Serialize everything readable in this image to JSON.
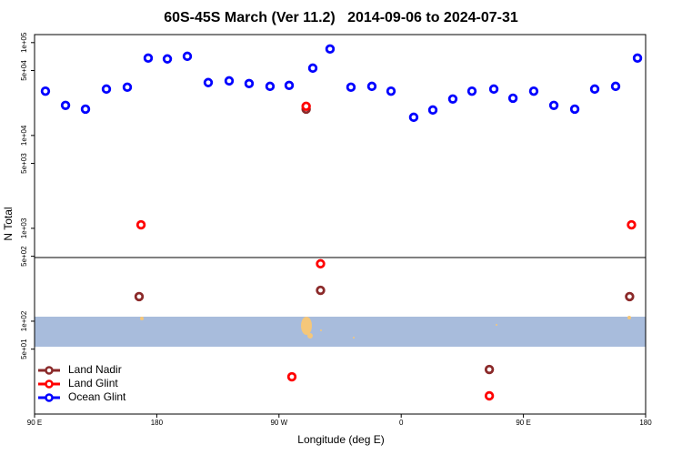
{
  "chart_data": {
    "type": "scatter",
    "title": "60S-45S March (Ver 11.2)   2014-09-06 to 2024-07-31",
    "x_label": "Longitude (deg E)",
    "y_label": "N Total",
    "log_y": true,
    "grid": false,
    "legend": "lower left",
    "xlim": [
      90,
      540
    ],
    "ylim": [
      10,
      122000
    ],
    "xticks": [
      {
        "value": 90,
        "label": "90 E"
      },
      180,
      {
        "value": 270,
        "label": "90 W"
      },
      {
        "value": 360,
        "label": "0"
      },
      {
        "value": 450,
        "label": "90 E"
      },
      {
        "value": 540,
        "label": "180"
      }
    ],
    "yticks": [
      {
        "value": 100000,
        "label": "1e+05"
      },
      {
        "value": 50000,
        "label": "5e+04"
      },
      {
        "value": 10000,
        "label": "1e+04"
      },
      {
        "value": 5000,
        "label": "5e+03"
      },
      {
        "value": 1000,
        "label": "1e+03"
      },
      {
        "value": 500,
        "label": "5e+02"
      },
      {
        "value": 100,
        "label": "1e+02"
      },
      {
        "value": 50,
        "label": "5e+01"
      }
    ],
    "series": [
      {
        "name": "Land Nadir",
        "color": "#8b2a2a",
        "x": [
          167,
          290,
          300.6,
          528.2,
          424.9
        ],
        "values": [
          184,
          19200,
          215,
          184,
          30.2
        ]
      },
      {
        "name": "Land Glint",
        "color": "#ff0000",
        "x": [
          168.4,
          290,
          300.6,
          529.6,
          279.5,
          424.9
        ],
        "values": [
          1090,
          20600,
          415,
          1090,
          25.2,
          15.7
        ]
      },
      {
        "name": "Ocean Glint",
        "color": "#0000ff",
        "x": [
          98,
          112.8,
          127.5,
          142.9,
          158.3,
          173.7,
          187.8,
          202.5,
          217.9,
          233.3,
          248,
          263.4,
          277.5,
          294.9,
          307.6,
          323,
          338.4,
          352.5,
          369.2,
          383.3,
          398,
          412.1,
          428.2,
          442.3,
          457.6,
          472.4,
          487.8,
          502.5,
          517.9,
          534
        ],
        "values": [
          30000,
          21100,
          19200,
          31600,
          33100,
          68100,
          66700,
          71200,
          37100,
          38700,
          36200,
          33800,
          34600,
          53100,
          85300,
          33100,
          33800,
          30000,
          15700,
          18800,
          24700,
          30000,
          31600,
          25200,
          30000,
          21100,
          19200,
          31600,
          33800,
          68100
        ]
      }
    ]
  }
}
